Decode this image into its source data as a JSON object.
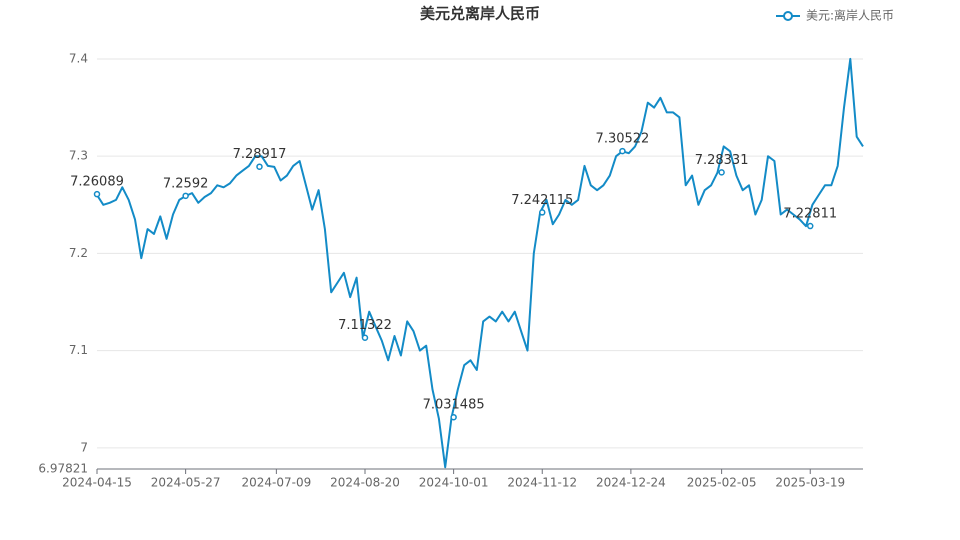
{
  "chart_data": {
    "type": "line",
    "title": "美元兑离岸人民币",
    "series": [
      {
        "name": "美元:离岸人民币",
        "color": "#138bc7",
        "x": [
          "2024-04-15",
          "2024-04-18",
          "2024-04-21",
          "2024-04-24",
          "2024-04-27",
          "2024-04-30",
          "2024-05-03",
          "2024-05-06",
          "2024-05-09",
          "2024-05-12",
          "2024-05-15",
          "2024-05-18",
          "2024-05-21",
          "2024-05-24",
          "2024-05-27",
          "2024-05-30",
          "2024-06-02",
          "2024-06-05",
          "2024-06-08",
          "2024-06-11",
          "2024-06-14",
          "2024-06-17",
          "2024-06-20",
          "2024-06-23",
          "2024-06-26",
          "2024-06-29",
          "2024-07-02",
          "2024-07-05",
          "2024-07-08",
          "2024-07-11",
          "2024-07-14",
          "2024-07-17",
          "2024-07-20",
          "2024-07-23",
          "2024-07-26",
          "2024-07-29",
          "2024-08-01",
          "2024-08-04",
          "2024-08-07",
          "2024-08-10",
          "2024-08-13",
          "2024-08-16",
          "2024-08-19",
          "2024-08-22",
          "2024-08-25",
          "2024-08-28",
          "2024-08-31",
          "2024-09-03",
          "2024-09-06",
          "2024-09-09",
          "2024-09-12",
          "2024-09-15",
          "2024-09-18",
          "2024-09-21",
          "2024-09-24",
          "2024-09-27",
          "2024-09-30",
          "2024-10-03",
          "2024-10-06",
          "2024-10-09",
          "2024-10-12",
          "2024-10-15",
          "2024-10-18",
          "2024-10-21",
          "2024-10-24",
          "2024-10-27",
          "2024-10-30",
          "2024-11-02",
          "2024-11-05",
          "2024-11-08",
          "2024-11-11",
          "2024-11-14",
          "2024-11-17",
          "2024-11-20",
          "2024-11-23",
          "2024-11-26",
          "2024-11-29",
          "2024-12-02",
          "2024-12-05",
          "2024-12-08",
          "2024-12-11",
          "2024-12-14",
          "2024-12-17",
          "2024-12-20",
          "2024-12-23",
          "2024-12-26",
          "2024-12-29",
          "2025-01-01",
          "2025-01-04",
          "2025-01-07",
          "2025-01-10",
          "2025-01-13",
          "2025-01-16",
          "2025-01-19",
          "2025-01-22",
          "2025-01-25",
          "2025-01-28",
          "2025-01-31",
          "2025-02-03",
          "2025-02-06",
          "2025-02-09",
          "2025-02-12",
          "2025-02-15",
          "2025-02-18",
          "2025-02-21",
          "2025-02-24",
          "2025-02-27",
          "2025-03-02",
          "2025-03-05",
          "2025-03-08",
          "2025-03-11",
          "2025-03-14",
          "2025-03-17",
          "2025-03-20",
          "2025-03-23",
          "2025-03-26",
          "2025-03-29",
          "2025-04-01",
          "2025-04-04",
          "2025-04-07",
          "2025-04-10",
          "2025-04-13"
        ],
        "values": [
          7.26,
          7.25,
          7.252,
          7.255,
          7.268,
          7.255,
          7.235,
          7.195,
          7.225,
          7.22,
          7.238,
          7.215,
          7.24,
          7.255,
          7.259,
          7.262,
          7.252,
          7.258,
          7.262,
          7.27,
          7.268,
          7.272,
          7.28,
          7.285,
          7.29,
          7.3,
          7.3,
          7.29,
          7.289,
          7.275,
          7.28,
          7.29,
          7.295,
          7.27,
          7.245,
          7.265,
          7.225,
          7.16,
          7.17,
          7.18,
          7.155,
          7.175,
          7.113,
          7.14,
          7.125,
          7.11,
          7.09,
          7.115,
          7.095,
          7.13,
          7.12,
          7.1,
          7.105,
          7.06,
          7.03,
          6.98,
          7.031,
          7.06,
          7.085,
          7.09,
          7.08,
          7.13,
          7.135,
          7.13,
          7.14,
          7.13,
          7.14,
          7.12,
          7.1,
          7.2,
          7.242,
          7.255,
          7.23,
          7.24,
          7.255,
          7.25,
          7.255,
          7.29,
          7.27,
          7.265,
          7.27,
          7.28,
          7.3,
          7.305,
          7.303,
          7.31,
          7.325,
          7.355,
          7.35,
          7.36,
          7.345,
          7.345,
          7.34,
          7.27,
          7.28,
          7.25,
          7.265,
          7.27,
          7.283,
          7.31,
          7.305,
          7.28,
          7.265,
          7.27,
          7.24,
          7.255,
          7.3,
          7.295,
          7.24,
          7.245,
          7.24,
          7.235,
          7.228,
          7.25,
          7.26,
          7.27,
          7.27,
          7.29,
          7.35,
          7.4,
          7.32,
          7.31
        ]
      }
    ],
    "annotations": [
      {
        "x": "2024-04-15",
        "value": 7.26089
      },
      {
        "x": "2024-05-27",
        "value": 7.2592
      },
      {
        "x": "2024-07-01",
        "value": 7.28917
      },
      {
        "x": "2024-08-20",
        "value": 7.11322
      },
      {
        "x": "2024-10-01",
        "value": 7.031485
      },
      {
        "x": "2024-11-12",
        "value": 7.242115
      },
      {
        "x": "2024-12-20",
        "value": 7.30522
      },
      {
        "x": "2025-02-05",
        "value": 7.28331
      },
      {
        "x": "2025-03-19",
        "value": 7.22811
      }
    ],
    "xlim": [
      "2024-04-15",
      "2025-04-13"
    ],
    "xticks": [
      "2024-04-15",
      "2024-05-27",
      "2024-07-09",
      "2024-08-20",
      "2024-10-01",
      "2024-11-12",
      "2024-12-24",
      "2025-02-05",
      "2025-03-19"
    ],
    "ylim": [
      6.97821,
      7.42
    ],
    "yticks": [
      6.97821,
      7,
      7.1,
      7.2,
      7.3,
      7.4
    ],
    "grid": true,
    "legend": "top-right"
  }
}
